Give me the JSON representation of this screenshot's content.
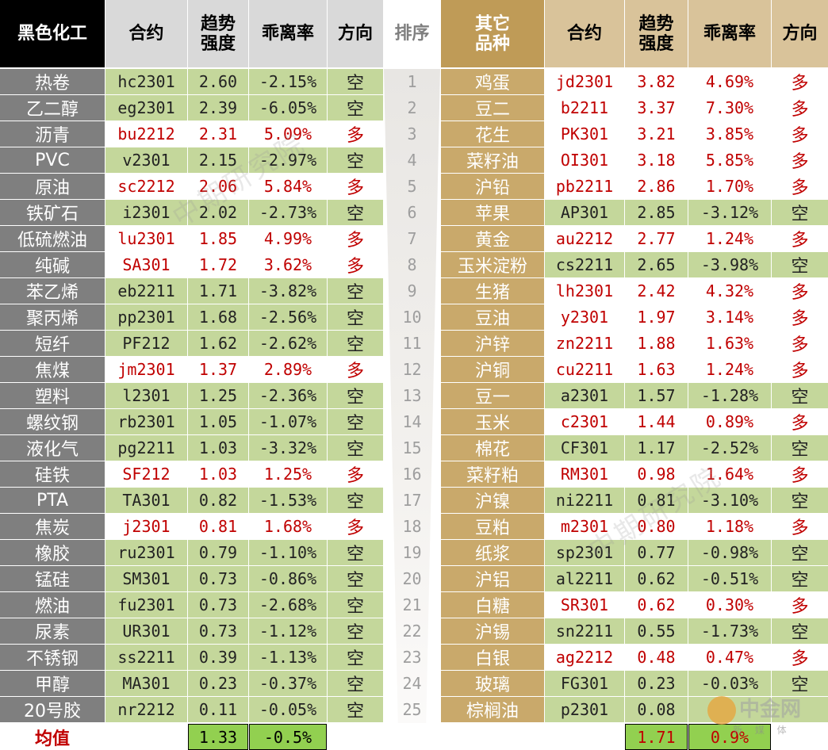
{
  "colors": {
    "header_black": "#000000",
    "header_gray": "#d9d9d9",
    "header_gold": "#bf9b57",
    "header_tan": "#d9c39a",
    "name_left": "#7f7f7f",
    "name_right": "#c9a96b",
    "green": "#c4d79b",
    "white": "#ffffff",
    "red_text": "#c00000",
    "black_text": "#222222",
    "avg_green": "#92d050"
  },
  "left_headers": {
    "category": "黑色化工",
    "contract": "合约",
    "trend": "趋势强度",
    "deviation": "乖离率",
    "direction": "方向"
  },
  "rank_header": "排序",
  "right_headers": {
    "category": "其它品种",
    "contract": "合约",
    "trend": "趋势强度",
    "deviation": "乖离率",
    "direction": "方向"
  },
  "rows": [
    {
      "rank": "1",
      "l": {
        "name": "热卷",
        "contract": "hc2301",
        "trend": "2.60",
        "dev": "-2.15%",
        "dir": "空"
      },
      "r": {
        "name": "鸡蛋",
        "contract": "jd2301",
        "trend": "3.82",
        "dev": "4.69%",
        "dir": "多"
      }
    },
    {
      "rank": "2",
      "l": {
        "name": "乙二醇",
        "contract": "eg2301",
        "trend": "2.39",
        "dev": "-6.05%",
        "dir": "空"
      },
      "r": {
        "name": "豆二",
        "contract": "b2211",
        "trend": "3.37",
        "dev": "7.30%",
        "dir": "多"
      }
    },
    {
      "rank": "3",
      "l": {
        "name": "沥青",
        "contract": "bu2212",
        "trend": "2.31",
        "dev": "5.09%",
        "dir": "多"
      },
      "r": {
        "name": "花生",
        "contract": "PK301",
        "trend": "3.21",
        "dev": "3.85%",
        "dir": "多"
      }
    },
    {
      "rank": "4",
      "l": {
        "name": "PVC",
        "contract": "v2301",
        "trend": "2.15",
        "dev": "-2.97%",
        "dir": "空"
      },
      "r": {
        "name": "菜籽油",
        "contract": "OI301",
        "trend": "3.18",
        "dev": "5.85%",
        "dir": "多"
      }
    },
    {
      "rank": "5",
      "l": {
        "name": "原油",
        "contract": "sc2212",
        "trend": "2.06",
        "dev": "5.84%",
        "dir": "多"
      },
      "r": {
        "name": "沪铅",
        "contract": "pb2211",
        "trend": "2.86",
        "dev": "1.70%",
        "dir": "多"
      }
    },
    {
      "rank": "6",
      "l": {
        "name": "铁矿石",
        "contract": "i2301",
        "trend": "2.02",
        "dev": "-2.73%",
        "dir": "空"
      },
      "r": {
        "name": "苹果",
        "contract": "AP301",
        "trend": "2.85",
        "dev": "-3.12%",
        "dir": "空"
      }
    },
    {
      "rank": "7",
      "l": {
        "name": "低硫燃油",
        "contract": "lu2301",
        "trend": "1.85",
        "dev": "4.99%",
        "dir": "多"
      },
      "r": {
        "name": "黄金",
        "contract": "au2212",
        "trend": "2.77",
        "dev": "1.24%",
        "dir": "多"
      }
    },
    {
      "rank": "8",
      "l": {
        "name": "纯碱",
        "contract": "SA301",
        "trend": "1.72",
        "dev": "3.62%",
        "dir": "多"
      },
      "r": {
        "name": "玉米淀粉",
        "contract": "cs2211",
        "trend": "2.65",
        "dev": "-3.98%",
        "dir": "空"
      }
    },
    {
      "rank": "9",
      "l": {
        "name": "苯乙烯",
        "contract": "eb2211",
        "trend": "1.71",
        "dev": "-3.82%",
        "dir": "空"
      },
      "r": {
        "name": "生猪",
        "contract": "lh2301",
        "trend": "2.42",
        "dev": "4.32%",
        "dir": "多"
      }
    },
    {
      "rank": "10",
      "l": {
        "name": "聚丙烯",
        "contract": "pp2301",
        "trend": "1.68",
        "dev": "-2.56%",
        "dir": "空"
      },
      "r": {
        "name": "豆油",
        "contract": "y2301",
        "trend": "1.97",
        "dev": "3.14%",
        "dir": "多"
      }
    },
    {
      "rank": "11",
      "l": {
        "name": "短纤",
        "contract": "PF212",
        "trend": "1.62",
        "dev": "-2.62%",
        "dir": "空"
      },
      "r": {
        "name": "沪锌",
        "contract": "zn2211",
        "trend": "1.88",
        "dev": "1.63%",
        "dir": "多"
      }
    },
    {
      "rank": "12",
      "l": {
        "name": "焦煤",
        "contract": "jm2301",
        "trend": "1.37",
        "dev": "2.89%",
        "dir": "多"
      },
      "r": {
        "name": "沪铜",
        "contract": "cu2211",
        "trend": "1.63",
        "dev": "1.24%",
        "dir": "多"
      }
    },
    {
      "rank": "13",
      "l": {
        "name": "塑料",
        "contract": "l2301",
        "trend": "1.25",
        "dev": "-2.36%",
        "dir": "空"
      },
      "r": {
        "name": "豆一",
        "contract": "a2301",
        "trend": "1.57",
        "dev": "-1.28%",
        "dir": "空"
      }
    },
    {
      "rank": "14",
      "l": {
        "name": "螺纹钢",
        "contract": "rb2301",
        "trend": "1.05",
        "dev": "-1.07%",
        "dir": "空"
      },
      "r": {
        "name": "玉米",
        "contract": "c2301",
        "trend": "1.44",
        "dev": "0.89%",
        "dir": "多"
      }
    },
    {
      "rank": "15",
      "l": {
        "name": "液化气",
        "contract": "pg2211",
        "trend": "1.03",
        "dev": "-3.32%",
        "dir": "空"
      },
      "r": {
        "name": "棉花",
        "contract": "CF301",
        "trend": "1.17",
        "dev": "-2.52%",
        "dir": "空"
      }
    },
    {
      "rank": "16",
      "l": {
        "name": "硅铁",
        "contract": "SF212",
        "trend": "1.03",
        "dev": "1.25%",
        "dir": "多"
      },
      "r": {
        "name": "菜籽粕",
        "contract": "RM301",
        "trend": "0.98",
        "dev": "1.64%",
        "dir": "多"
      }
    },
    {
      "rank": "17",
      "l": {
        "name": "PTA",
        "contract": "TA301",
        "trend": "0.82",
        "dev": "-1.53%",
        "dir": "空"
      },
      "r": {
        "name": "沪镍",
        "contract": "ni2211",
        "trend": "0.81",
        "dev": "-3.10%",
        "dir": "空"
      }
    },
    {
      "rank": "18",
      "l": {
        "name": "焦炭",
        "contract": "j2301",
        "trend": "0.81",
        "dev": "1.68%",
        "dir": "多"
      },
      "r": {
        "name": "豆粕",
        "contract": "m2301",
        "trend": "0.80",
        "dev": "1.18%",
        "dir": "多"
      }
    },
    {
      "rank": "19",
      "l": {
        "name": "橡胶",
        "contract": "ru2301",
        "trend": "0.79",
        "dev": "-1.10%",
        "dir": "空"
      },
      "r": {
        "name": "纸浆",
        "contract": "sp2301",
        "trend": "0.77",
        "dev": "-0.98%",
        "dir": "空"
      }
    },
    {
      "rank": "20",
      "l": {
        "name": "锰硅",
        "contract": "SM301",
        "trend": "0.73",
        "dev": "-0.86%",
        "dir": "空"
      },
      "r": {
        "name": "沪铝",
        "contract": "al2211",
        "trend": "0.62",
        "dev": "-0.51%",
        "dir": "空"
      }
    },
    {
      "rank": "21",
      "l": {
        "name": "燃油",
        "contract": "fu2301",
        "trend": "0.73",
        "dev": "-2.68%",
        "dir": "空"
      },
      "r": {
        "name": "白糖",
        "contract": "SR301",
        "trend": "0.62",
        "dev": "0.30%",
        "dir": "多"
      }
    },
    {
      "rank": "22",
      "l": {
        "name": "尿素",
        "contract": "UR301",
        "trend": "0.73",
        "dev": "-1.12%",
        "dir": "空"
      },
      "r": {
        "name": "沪锡",
        "contract": "sn2211",
        "trend": "0.55",
        "dev": "-1.73%",
        "dir": "空"
      }
    },
    {
      "rank": "23",
      "l": {
        "name": "不锈钢",
        "contract": "ss2211",
        "trend": "0.39",
        "dev": "-1.13%",
        "dir": "空"
      },
      "r": {
        "name": "白银",
        "contract": "ag2212",
        "trend": "0.48",
        "dev": "0.47%",
        "dir": "多"
      }
    },
    {
      "rank": "24",
      "l": {
        "name": "甲醇",
        "contract": "MA301",
        "trend": "0.23",
        "dev": "-0.37%",
        "dir": "空"
      },
      "r": {
        "name": "玻璃",
        "contract": "FG301",
        "trend": "0.23",
        "dev": "-0.03%",
        "dir": "空"
      }
    },
    {
      "rank": "25",
      "l": {
        "name": "20号胶",
        "contract": "nr2212",
        "trend": "0.11",
        "dev": "-0.05%",
        "dir": "空"
      },
      "r": {
        "name": "棕榈油",
        "contract": "p2301",
        "trend": "0.08",
        "dev": "",
        "dir": ""
      }
    }
  ],
  "average": {
    "label": "均值",
    "left_trend": "1.33",
    "left_dev": "-0.5%",
    "right_trend": "1.71",
    "right_dev": "0.9%"
  },
  "watermarks": [
    "中期研究院",
    "中期研究院",
    "中期研究院"
  ],
  "logo": {
    "text": "中金网",
    "sub": "新 媒 体",
    "url": "CNGOLD.COM.CN"
  }
}
